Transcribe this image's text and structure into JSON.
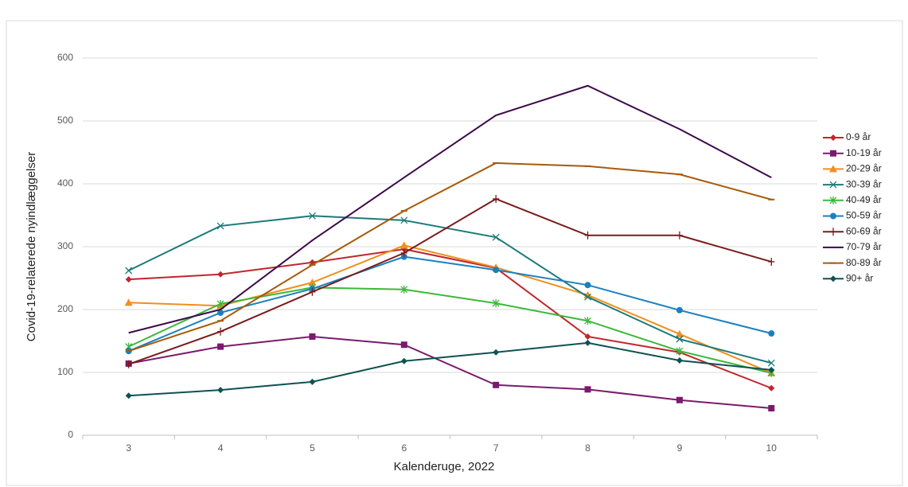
{
  "chart_data": {
    "type": "line",
    "y_label": "Covid-19-relaterede nyindlæggelser",
    "x_label": "Kalenderuge, 2022",
    "categories": [
      "3",
      "4",
      "5",
      "6",
      "7",
      "8",
      "9",
      "10"
    ],
    "ylim": [
      0,
      600
    ],
    "yticks": [
      0,
      100,
      200,
      300,
      400,
      500,
      600
    ],
    "grid": true,
    "legend": "right",
    "series": [
      {
        "name": "0-9 år",
        "color": "#c0262d",
        "marker": "diamond",
        "values": [
          248,
          256,
          275,
          296,
          266,
          157,
          132,
          75
        ]
      },
      {
        "name": "10-19 år",
        "color": "#7b1a6d",
        "marker": "square",
        "values": [
          114,
          141,
          157,
          144,
          80,
          73,
          56,
          43
        ]
      },
      {
        "name": "20-29 år",
        "color": "#f28e1b",
        "marker": "triangle",
        "values": [
          211,
          206,
          243,
          302,
          267,
          223,
          161,
          99
        ]
      },
      {
        "name": "30-39 år",
        "color": "#1e7a7a",
        "marker": "x",
        "values": [
          262,
          333,
          349,
          342,
          315,
          220,
          153,
          115
        ]
      },
      {
        "name": "40-49 år",
        "color": "#3cb83a",
        "marker": "star",
        "values": [
          141,
          209,
          235,
          232,
          210,
          182,
          134,
          99
        ]
      },
      {
        "name": "50-59 år",
        "color": "#1a80c0",
        "marker": "circle",
        "values": [
          134,
          195,
          233,
          284,
          263,
          239,
          199,
          162
        ]
      },
      {
        "name": "60-69 år",
        "color": "#7a1a1a",
        "marker": "plus",
        "values": [
          113,
          165,
          228,
          290,
          376,
          318,
          318,
          276
        ]
      },
      {
        "name": "70-79 år",
        "color": "#3d0a4a",
        "marker": "none",
        "values": [
          163,
          200,
          310,
          410,
          509,
          556,
          487,
          410
        ]
      },
      {
        "name": "80-89 år",
        "color": "#a85a0a",
        "marker": "dash",
        "values": [
          134,
          182,
          271,
          357,
          433,
          428,
          415,
          375
        ]
      },
      {
        "name": "90+ år",
        "color": "#0e5252",
        "marker": "diamond",
        "values": [
          63,
          72,
          85,
          118,
          132,
          147,
          119,
          104
        ]
      }
    ]
  }
}
